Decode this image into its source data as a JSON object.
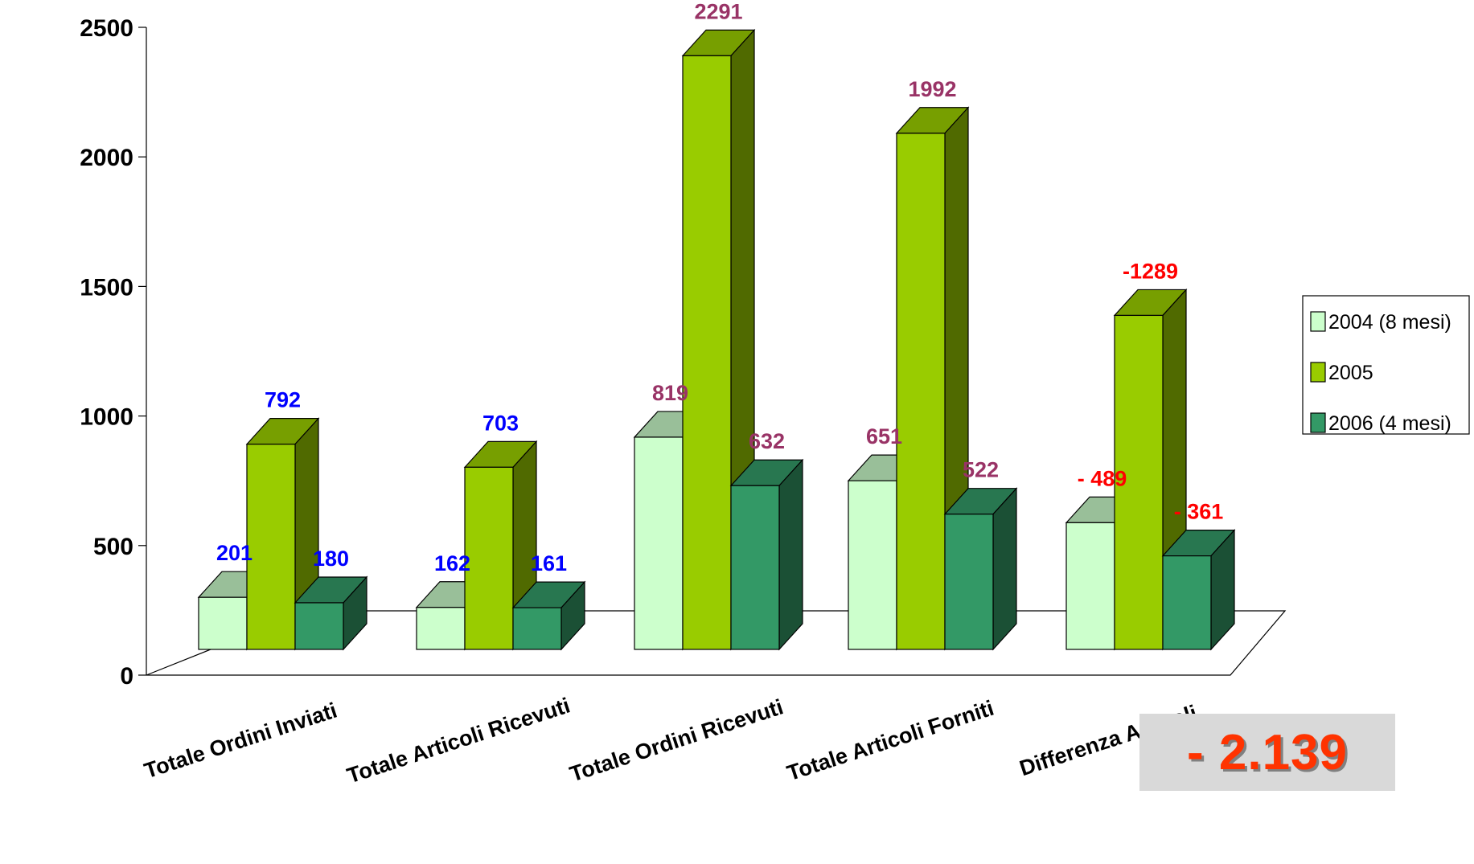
{
  "chart_data": {
    "type": "bar",
    "style": "3d-clustered-column",
    "categories": [
      "Totale Ordini Inviati",
      "Totale Articoli Ricevuti",
      "Totale Ordini Ricevuti",
      "Totale Articoli Forniti",
      "Differenza Articoli"
    ],
    "series": [
      {
        "name": "2004 (8 mesi)",
        "values": [
          201,
          162,
          819,
          651,
          489
        ],
        "labels": [
          "201",
          "162",
          "819",
          "651",
          "- 489"
        ],
        "color": "#ccffcc"
      },
      {
        "name": "2005",
        "values": [
          792,
          703,
          2291,
          1992,
          1289
        ],
        "labels": [
          "792",
          "703",
          "2291",
          "1992",
          "-1289"
        ],
        "color": "#99cc00"
      },
      {
        "name": "2006 (4 mesi)",
        "values": [
          180,
          161,
          632,
          522,
          361
        ],
        "labels": [
          "180",
          "161",
          "632",
          "522",
          "- 361"
        ],
        "color": "#339966"
      }
    ],
    "label_colors": [
      "#0000ff",
      "#0000ff",
      "#993366",
      "#993366",
      "#ff0000"
    ],
    "ylim": [
      0,
      2500
    ],
    "yticks": [
      0,
      500,
      1000,
      1500,
      2000,
      2500
    ],
    "legend_position": "right",
    "grid": false
  },
  "summary": {
    "total_difference": "- 2.139"
  }
}
